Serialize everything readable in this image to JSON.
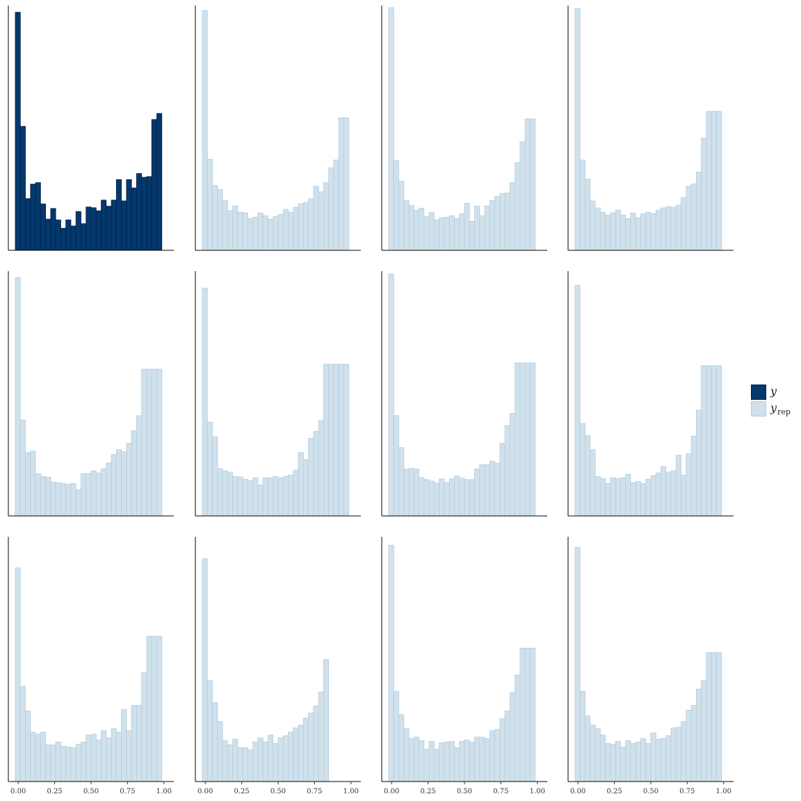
{
  "chart_data": {
    "type": "bar",
    "layout": "3x4 grid of histograms",
    "x_ticks": [
      "0.00",
      "0.25",
      "0.50",
      "0.75",
      "1.00"
    ],
    "xlim": [
      -0.02,
      1.02
    ],
    "bins": 30,
    "legend": {
      "position": "right",
      "items": [
        {
          "name": "y",
          "label_main": "y",
          "label_sub": "",
          "color": "#03396c",
          "stroke": "#011f4b"
        },
        {
          "name": "y_rep",
          "label_main": "y",
          "label_sub": "rep",
          "color": "#d1e1ec",
          "stroke": "#b3cde0"
        }
      ]
    },
    "panels": [
      {
        "series": "y",
        "ymax": 320,
        "values": [
          313,
          163,
          68,
          87,
          89,
          61,
          41,
          55,
          40,
          29,
          40,
          32,
          51,
          35,
          57,
          56,
          52,
          66,
          58,
          66,
          93,
          65,
          93,
          82,
          101,
          96,
          97,
          172,
          180,
          0
        ]
      },
      {
        "series": "y_rep",
        "ymax": 345,
        "values": [
          340,
          129,
          92,
          86,
          71,
          56,
          63,
          54,
          53,
          45,
          47,
          53,
          49,
          44,
          48,
          51,
          58,
          54,
          61,
          66,
          68,
          73,
          91,
          83,
          96,
          117,
          128,
          188,
          188,
          0
        ]
      },
      {
        "series": "y_rep",
        "ymax": 352,
        "values": [
          351,
          130,
          100,
          72,
          65,
          58,
          61,
          49,
          55,
          44,
          47,
          48,
          50,
          46,
          53,
          68,
          42,
          64,
          50,
          64,
          72,
          78,
          82,
          83,
          98,
          127,
          157,
          190,
          190,
          0
        ]
      },
      {
        "series": "y_rep",
        "ymax": 345,
        "values": [
          343,
          128,
          101,
          70,
          60,
          54,
          50,
          53,
          57,
          50,
          45,
          53,
          46,
          52,
          54,
          52,
          57,
          60,
          62,
          61,
          64,
          75,
          91,
          94,
          111,
          159,
          197,
          197,
          197,
          0
        ]
      },
      {
        "series": "y_rep",
        "ymax": 345,
        "values": [
          338,
          136,
          90,
          92,
          60,
          56,
          55,
          48,
          47,
          46,
          45,
          46,
          37,
          60,
          60,
          64,
          61,
          67,
          75,
          87,
          94,
          91,
          103,
          121,
          142,
          208,
          208,
          208,
          208,
          0
        ]
      },
      {
        "series": "y_rep",
        "ymax": 345,
        "values": [
          323,
          133,
          112,
          67,
          64,
          62,
          56,
          55,
          52,
          50,
          54,
          44,
          54,
          54,
          56,
          54,
          56,
          58,
          65,
          90,
          80,
          110,
          120,
          135,
          215,
          215,
          215,
          215,
          215,
          0
        ]
      },
      {
        "series": "y_rep",
        "ymax": 342,
        "values": [
          340,
          141,
          96,
          66,
          67,
          66,
          54,
          51,
          49,
          46,
          52,
          47,
          52,
          56,
          53,
          51,
          51,
          66,
          72,
          72,
          77,
          74,
          102,
          127,
          144,
          215,
          215,
          215,
          215,
          0
        ]
      },
      {
        "series": "y_rep",
        "ymax": 345,
        "values": [
          327,
          131,
          114,
          94,
          56,
          53,
          46,
          54,
          53,
          54,
          59,
          47,
          49,
          46,
          52,
          57,
          61,
          70,
          62,
          64,
          86,
          58,
          88,
          113,
          150,
          213,
          213,
          213,
          213,
          0
        ]
      },
      {
        "series": "y_rep",
        "ymax": 345,
        "values": [
          303,
          135,
          100,
          70,
          67,
          70,
          52,
          52,
          56,
          50,
          49,
          48,
          53,
          56,
          66,
          67,
          59,
          72,
          62,
          75,
          70,
          102,
          72,
          108,
          108,
          154,
          206,
          206,
          206,
          0
        ]
      },
      {
        "series": "y_rep",
        "ymax": 345,
        "values": [
          316,
          143,
          112,
          85,
          58,
          52,
          60,
          48,
          48,
          45,
          56,
          62,
          56,
          66,
          54,
          62,
          65,
          70,
          76,
          80,
          90,
          97,
          107,
          127,
          173,
          0,
          0,
          0,
          0,
          0
        ]
      },
      {
        "series": "y_rep",
        "ymax": 345,
        "values": [
          335,
          128,
          95,
          75,
          61,
          63,
          58,
          46,
          57,
          46,
          55,
          56,
          57,
          48,
          57,
          59,
          56,
          63,
          63,
          61,
          72,
          74,
          89,
          100,
          126,
          151,
          189,
          189,
          189,
          0
        ]
      },
      {
        "series": "y_rep",
        "ymax": 345,
        "values": [
          332,
          128,
          93,
          80,
          75,
          66,
          54,
          53,
          57,
          49,
          58,
          54,
          56,
          61,
          54,
          69,
          60,
          61,
          65,
          76,
          77,
          85,
          101,
          108,
          131,
          143,
          183,
          183,
          183,
          0
        ]
      }
    ]
  }
}
